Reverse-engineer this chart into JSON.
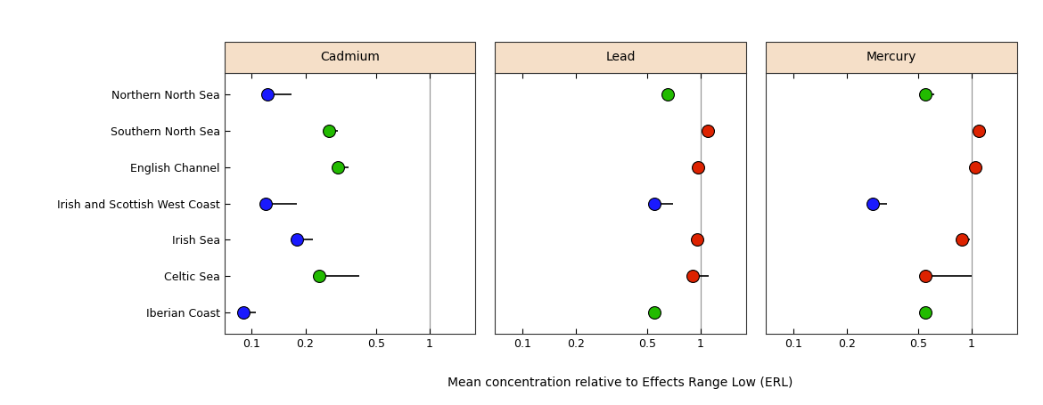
{
  "regions": [
    "Northern North Sea",
    "Southern North Sea",
    "English Channel",
    "Irish and Scottish West Coast",
    "Irish Sea",
    "Celtic Sea",
    "Iberian Coast"
  ],
  "cadmium": {
    "values": [
      0.122,
      0.272,
      0.305,
      0.12,
      0.18,
      0.24,
      0.09
    ],
    "errors_right": [
      0.045,
      0.032,
      0.045,
      0.06,
      0.04,
      0.16,
      0.015
    ],
    "colors": [
      "#1a1aff",
      "#22bb00",
      "#22bb00",
      "#1a1aff",
      "#1a1aff",
      "#22bb00",
      "#1a1aff"
    ]
  },
  "lead": {
    "values": [
      0.65,
      1.1,
      0.97,
      0.55,
      0.96,
      0.9,
      0.55
    ],
    "errors_right": [
      0.05,
      0.1,
      0.08,
      0.15,
      0.08,
      0.21,
      0.035
    ],
    "colors": [
      "#22bb00",
      "#dd2200",
      "#dd2200",
      "#1a1aff",
      "#dd2200",
      "#dd2200",
      "#22bb00"
    ]
  },
  "mercury": {
    "values": [
      0.55,
      1.1,
      1.05,
      0.28,
      0.88,
      0.55,
      0.55
    ],
    "errors_right": [
      0.07,
      0.08,
      0.09,
      0.055,
      0.1,
      0.45,
      0.04
    ],
    "colors": [
      "#22bb00",
      "#dd2200",
      "#dd2200",
      "#1a1aff",
      "#dd2200",
      "#dd2200",
      "#22bb00"
    ]
  },
  "xlabel": "Mean concentration relative to Effects Range Low (ERL)",
  "panel_titles": [
    "Cadmium",
    "Lead",
    "Mercury"
  ],
  "panel_header_bg": "#f5dfc8",
  "panel_header_edge": "#c8a882",
  "fig_bg": "#ffffff",
  "xlim": [
    0.07,
    1.8
  ],
  "xticks": [
    0.1,
    0.2,
    0.5,
    1
  ],
  "xticklabels": [
    "0.1",
    "0.2",
    "0.5",
    "1"
  ],
  "erl_line": 1.0,
  "dot_size": 100,
  "line_color": "#000000",
  "erl_line_color": "#999999",
  "spine_color": "#333333"
}
